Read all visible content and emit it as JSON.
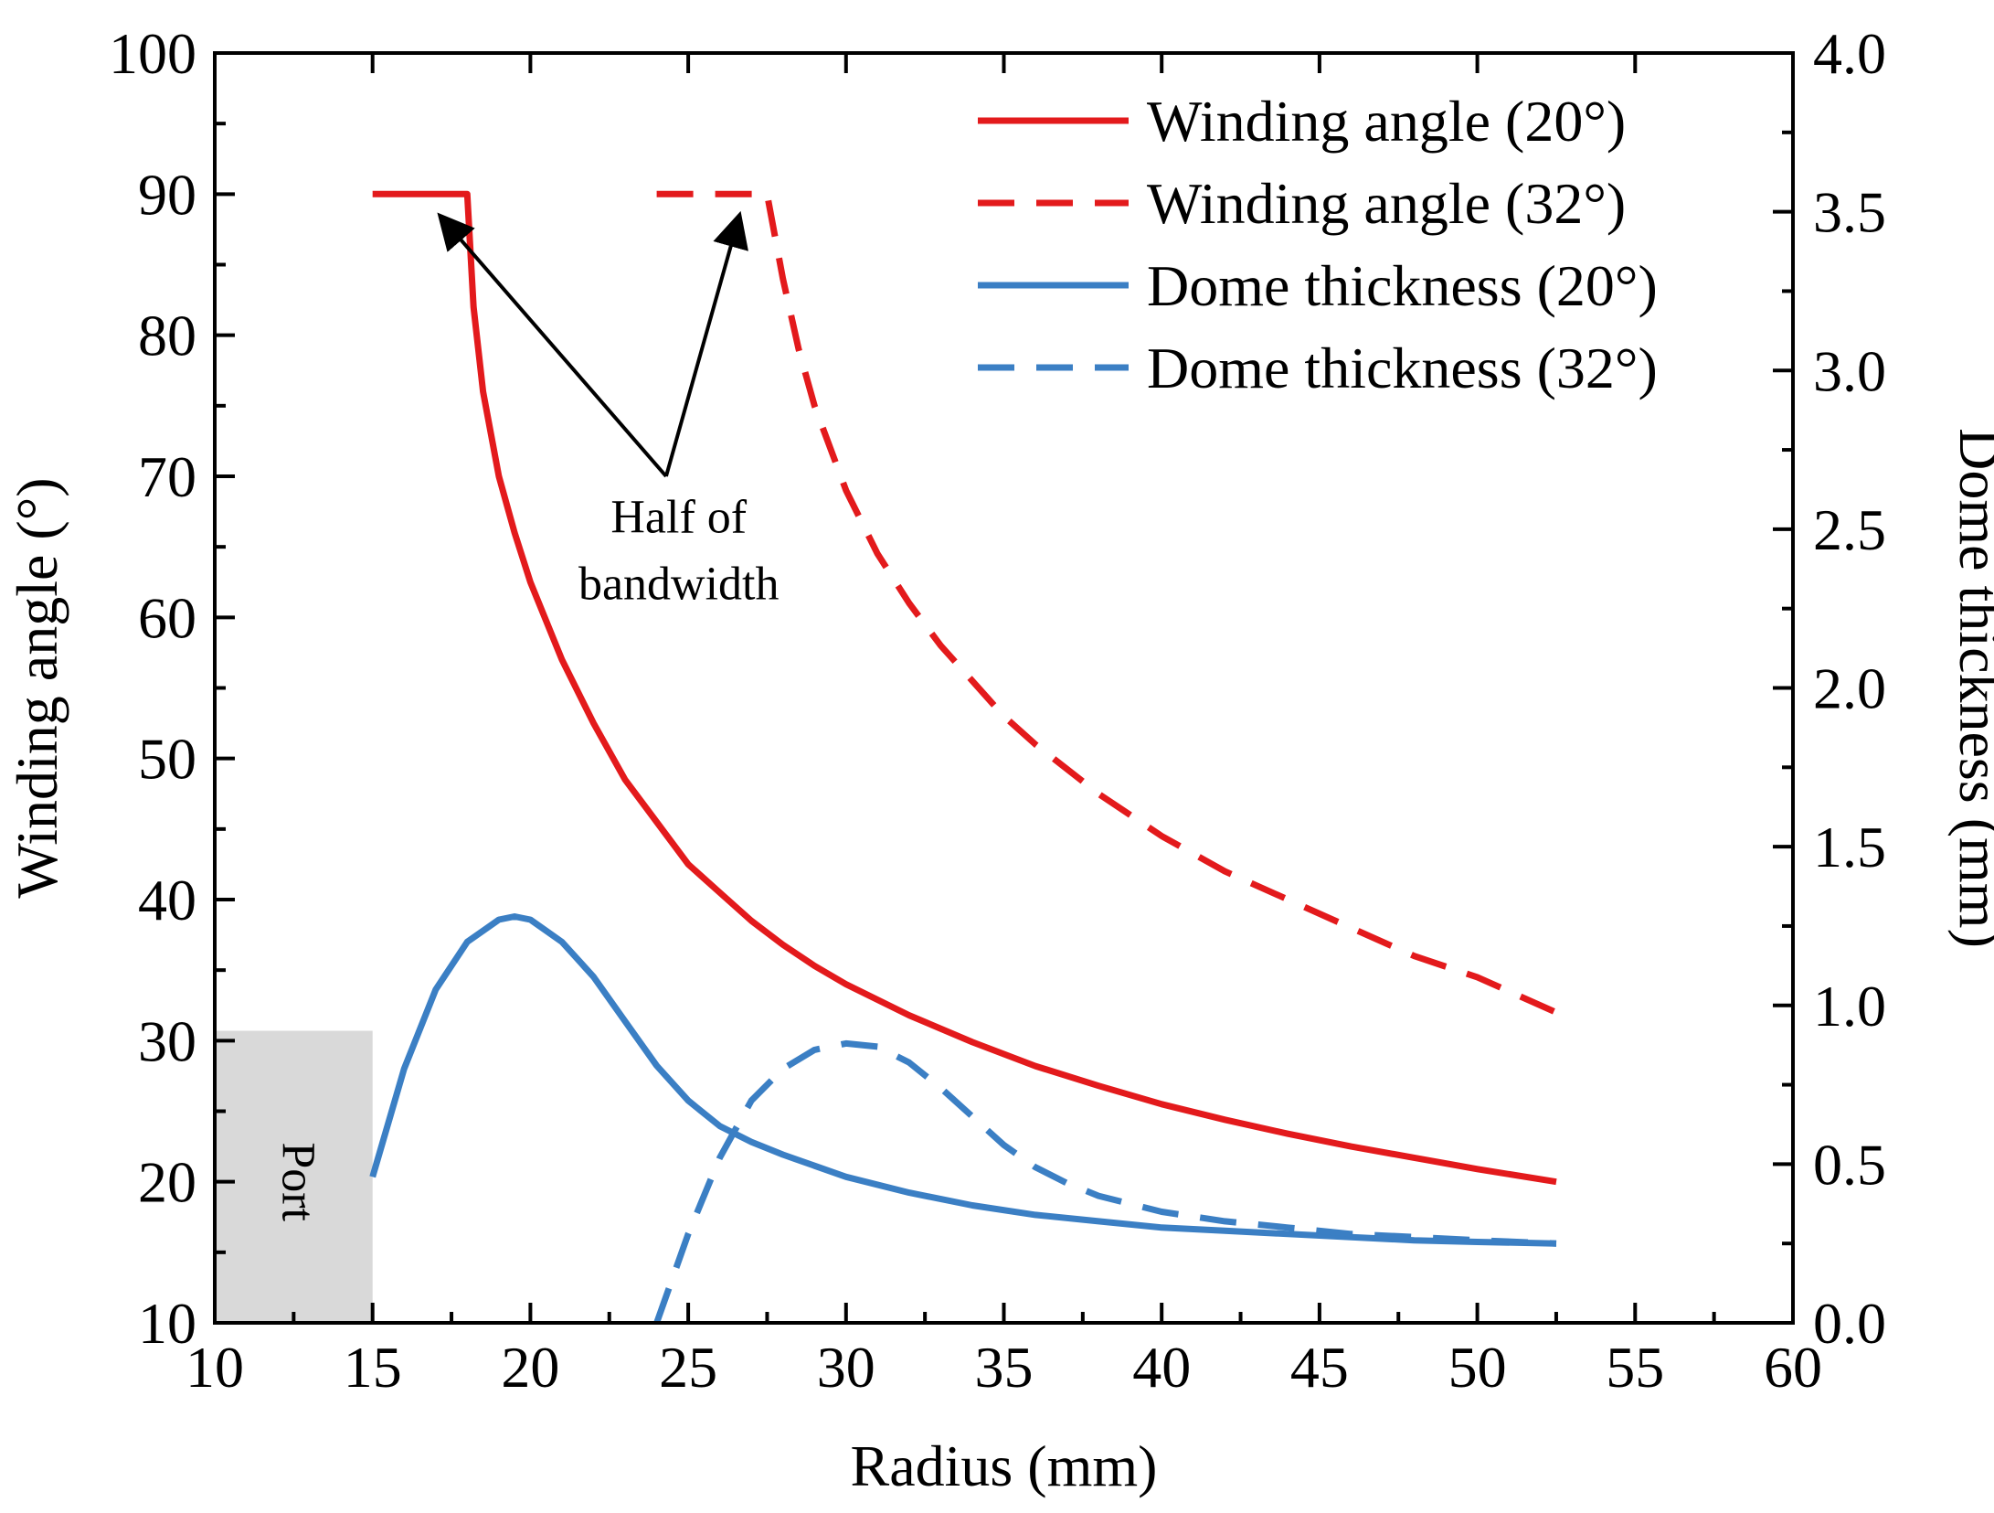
{
  "chart_data": {
    "type": "line",
    "xlabel": "Radius (mm)",
    "ylabel_left": "Winding angle (°)",
    "ylabel_right": "Dome thickness (mm)",
    "xlim": [
      10,
      60
    ],
    "ylim_left": [
      10,
      100
    ],
    "ylim_right": [
      0.0,
      4.0
    ],
    "x_ticks": [
      "10",
      "15",
      "20",
      "25",
      "30",
      "35",
      "40",
      "45",
      "50",
      "55",
      "60"
    ],
    "y_left_ticks": [
      "10",
      "20",
      "30",
      "40",
      "50",
      "60",
      "70",
      "80",
      "90",
      "100"
    ],
    "y_right_ticks": [
      "0.0",
      "0.5",
      "1.0",
      "1.5",
      "2.0",
      "2.5",
      "3.0",
      "3.5",
      "4.0"
    ],
    "legend_position": "top-right",
    "grid": false,
    "series": [
      {
        "name": "Winding angle (20°)",
        "axis": "left",
        "color": "#e31a1c",
        "dash": "solid",
        "x": [
          15,
          18,
          18,
          18.2,
          18.5,
          19,
          19.5,
          20,
          21,
          22,
          23,
          24,
          25,
          26,
          27,
          28,
          29,
          30,
          32,
          34,
          36,
          38,
          40,
          42,
          44,
          46,
          48,
          50,
          52.5
        ],
        "y": [
          90,
          90,
          90,
          82,
          76,
          70,
          66,
          62.5,
          57,
          52.5,
          48.5,
          45.5,
          42.5,
          40.5,
          38.5,
          36.8,
          35.3,
          34,
          31.8,
          29.9,
          28.2,
          26.8,
          25.5,
          24.4,
          23.4,
          22.5,
          21.7,
          20.9,
          20
        ]
      },
      {
        "name": "Winding angle (32°)",
        "axis": "left",
        "color": "#e31a1c",
        "dash": "dashed",
        "x": [
          24,
          27.5,
          28,
          28.5,
          29,
          30,
          31,
          32,
          33,
          34,
          35,
          36,
          38,
          40,
          42,
          44,
          46,
          48,
          50,
          52.5
        ],
        "y": [
          90,
          90,
          84,
          79,
          75,
          69,
          64.5,
          61,
          58,
          55.5,
          53,
          51,
          47.5,
          44.5,
          42,
          40,
          38,
          36,
          34.5,
          32
        ]
      },
      {
        "name": "Dome thickness (20°)",
        "axis": "right",
        "color": "#3b7fc4",
        "dash": "solid",
        "x": [
          15,
          16,
          17,
          18,
          19,
          19.5,
          20,
          21,
          22,
          23,
          24,
          25,
          26,
          27,
          28,
          30,
          32,
          34,
          36,
          38,
          40,
          42,
          44,
          46,
          48,
          50,
          52.5
        ],
        "y": [
          0.46,
          0.8,
          1.05,
          1.2,
          1.27,
          1.28,
          1.27,
          1.2,
          1.09,
          0.95,
          0.81,
          0.7,
          0.62,
          0.57,
          0.53,
          0.46,
          0.41,
          0.37,
          0.34,
          0.32,
          0.3,
          0.29,
          0.28,
          0.27,
          0.26,
          0.255,
          0.25
        ]
      },
      {
        "name": "Dome thickness (32°)",
        "axis": "right",
        "color": "#3b7fc4",
        "dash": "dashed",
        "x": [
          24,
          25,
          26,
          27,
          28,
          29,
          30,
          31,
          32,
          33,
          34,
          35,
          36,
          37,
          38,
          40,
          42,
          44,
          46,
          48,
          50,
          52.5
        ],
        "y": [
          0.0,
          0.28,
          0.52,
          0.7,
          0.8,
          0.86,
          0.88,
          0.87,
          0.82,
          0.74,
          0.65,
          0.56,
          0.49,
          0.44,
          0.4,
          0.35,
          0.32,
          0.3,
          0.28,
          0.27,
          0.26,
          0.25
        ]
      }
    ],
    "annotations": [
      {
        "text_lines": [
          "Half of",
          "bandwidth"
        ]
      },
      {
        "text": "Port"
      }
    ]
  }
}
